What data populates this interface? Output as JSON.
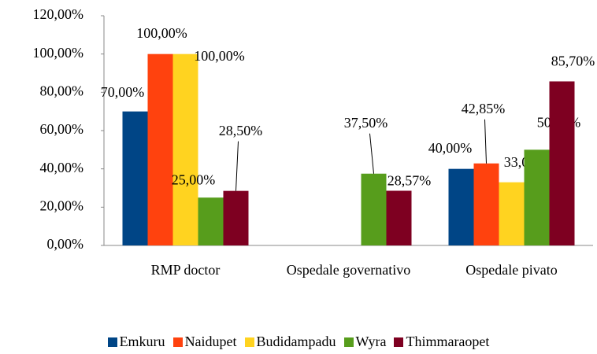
{
  "chart_data": {
    "type": "bar",
    "categories": [
      "RMP doctor",
      "Ospedale governativo",
      "Ospedale pivato"
    ],
    "series": [
      {
        "name": "Emkuru",
        "color": "#004586",
        "values": [
          70,
          null,
          40
        ],
        "value_labels": [
          "70,00%",
          null,
          "40,00%"
        ]
      },
      {
        "name": "Naidupet",
        "color": "#ff420e",
        "values": [
          100,
          null,
          42.85
        ],
        "value_labels": [
          "100,00%",
          null,
          "42,85%"
        ]
      },
      {
        "name": "Budidampadu",
        "color": "#ffd320",
        "values": [
          100,
          null,
          33
        ],
        "value_labels": [
          "100,00%",
          null,
          "33,00%"
        ]
      },
      {
        "name": "Wyra",
        "color": "#579d1c",
        "values": [
          25,
          37.5,
          50
        ],
        "value_labels": [
          "25,00%",
          "37,50%",
          "50,00%"
        ]
      },
      {
        "name": "Thimmaraopet",
        "color": "#7e0021",
        "values": [
          28.5,
          28.57,
          85.7
        ],
        "value_labels": [
          "28,50%",
          "28,57%",
          "85,70%"
        ]
      }
    ],
    "ylim": [
      0,
      120
    ],
    "yticks": [
      {
        "value": 0,
        "label": "0,00%"
      },
      {
        "value": 20,
        "label": "20,00%"
      },
      {
        "value": 40,
        "label": "40,00%"
      },
      {
        "value": 60,
        "label": "60,00%"
      },
      {
        "value": 80,
        "label": "80,00%"
      },
      {
        "value": 100,
        "label": "100,00%"
      },
      {
        "value": 120,
        "label": "120,00%"
      }
    ],
    "legend": "bottom"
  }
}
